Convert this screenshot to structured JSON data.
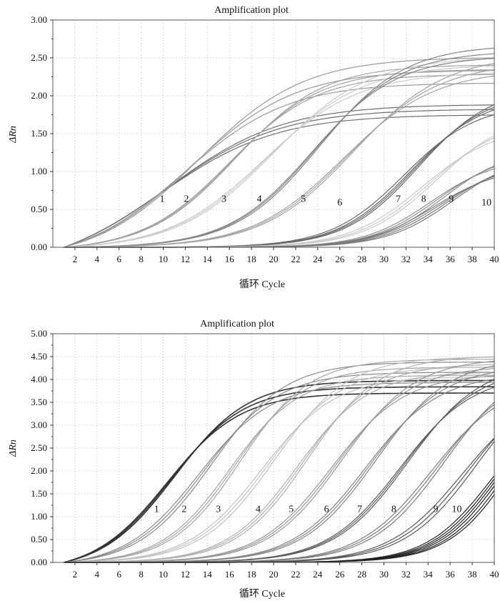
{
  "chart_data": [
    {
      "type": "line",
      "title": "Amplification plot",
      "xlabel": "循环  Cycle",
      "ylabel": "ΔRn",
      "xlim": [
        0,
        40
      ],
      "ylim": [
        0,
        3.0
      ],
      "x_ticks": [
        2,
        4,
        6,
        8,
        10,
        12,
        14,
        16,
        18,
        20,
        22,
        24,
        26,
        28,
        30,
        32,
        34,
        36,
        38,
        40
      ],
      "y_ticks": [
        "0.00",
        "0.50",
        "1.00",
        "1.50",
        "2.00",
        "2.50",
        "3.00"
      ],
      "grid": true,
      "series": [
        {
          "name": "1",
          "ct": 7.9,
          "plateau": 2.15,
          "slope": 0.19,
          "label_x": 9.9,
          "label_y": 0.6,
          "color": "#707070",
          "replicates": [
            -0.06,
            0.0,
            0.05
          ]
        },
        {
          "name": "2",
          "ct": 10.3,
          "plateau": 2.55,
          "slope": 0.21,
          "label_x": 12.1,
          "label_y": 0.6,
          "color": "#9a9a9a",
          "replicates": [
            -0.12,
            0.0,
            0.12
          ]
        },
        {
          "name": "3",
          "ct": 14.1,
          "plateau": 2.4,
          "slope": 0.25,
          "label_x": 15.5,
          "label_y": 0.6,
          "color": "#a2a2a2",
          "replicates": [
            -0.05,
            0.0,
            0.05
          ]
        },
        {
          "name": "4",
          "ct": 17.3,
          "plateau": 2.45,
          "slope": 0.23,
          "label_x": 18.7,
          "label_y": 0.6,
          "color": "#cccccc",
          "replicates": [
            -0.08,
            0.0,
            0.08
          ]
        },
        {
          "name": "5",
          "ct": 21.6,
          "plateau": 2.6,
          "slope": 0.26,
          "label_x": 22.7,
          "label_y": 0.6,
          "color": "#858585",
          "replicates": [
            -0.05,
            0.0,
            0.06
          ]
        },
        {
          "name": "6",
          "ct": 24.6,
          "plateau": 2.45,
          "slope": 0.24,
          "label_x": 26.0,
          "label_y": 0.55,
          "color": "#a4a4a4",
          "replicates": [
            -0.08,
            0.0,
            0.08
          ]
        },
        {
          "name": "7",
          "ct": 30.2,
          "plateau": 2.0,
          "slope": 0.3,
          "label_x": 31.3,
          "label_y": 0.6,
          "color": "#6a6a6a",
          "replicates": [
            -0.1,
            0.0,
            0.06,
            0.12
          ]
        },
        {
          "name": "8",
          "ct": 32.0,
          "plateau": 1.7,
          "slope": 0.3,
          "label_x": 33.6,
          "label_y": 0.6,
          "color": "#c9c9c9",
          "replicates": [
            -0.12,
            0.0,
            0.1
          ]
        },
        {
          "name": "9",
          "ct": 32.6,
          "plateau": 1.25,
          "slope": 0.33,
          "label_x": 36.1,
          "label_y": 0.6,
          "color": "#8e8e8e",
          "replicates": [
            -0.1,
            0.0,
            0.1
          ]
        },
        {
          "name": "10",
          "ct": 33.2,
          "plateau": 1.15,
          "slope": 0.33,
          "label_x": 39.3,
          "label_y": 0.55,
          "color": "#7a7a7a",
          "replicates": [
            -0.15,
            -0.05,
            0.05,
            0.15
          ]
        }
      ]
    },
    {
      "type": "line",
      "title": "Amplification plot",
      "xlabel": "循环  Cycle",
      "ylabel": "ΔRn",
      "xlim": [
        0,
        40
      ],
      "ylim": [
        0,
        5.0
      ],
      "x_ticks": [
        2,
        4,
        6,
        8,
        10,
        12,
        14,
        16,
        18,
        20,
        22,
        24,
        26,
        28,
        30,
        32,
        34,
        36,
        38,
        40
      ],
      "y_ticks": [
        "0.00",
        "0.50",
        "1.00",
        "1.50",
        "2.00",
        "2.50",
        "3.00",
        "3.50",
        "4.00",
        "4.50",
        "5.00"
      ],
      "grid": true,
      "series": [
        {
          "name": "1",
          "ct": 8.5,
          "plateau": 4.05,
          "slope": 0.3,
          "label_x": 9.4,
          "label_y": 1.1,
          "color": "#333333",
          "replicates": [
            -0.06,
            0.0,
            0.06
          ]
        },
        {
          "name": "2",
          "ct": 11.6,
          "plateau": 4.25,
          "slope": 0.3,
          "label_x": 11.9,
          "label_y": 1.1,
          "color": "#8a8a8a",
          "replicates": [
            -0.1,
            0.0,
            0.1
          ]
        },
        {
          "name": "3",
          "ct": 14.3,
          "plateau": 4.3,
          "slope": 0.32,
          "label_x": 15.0,
          "label_y": 1.1,
          "color": "#a6a6a6",
          "replicates": [
            -0.08,
            0.0,
            0.08
          ]
        },
        {
          "name": "4",
          "ct": 17.3,
          "plateau": 4.3,
          "slope": 0.3,
          "label_x": 18.6,
          "label_y": 1.1,
          "color": "#c2c2c2",
          "replicates": [
            -0.1,
            0.0,
            0.1
          ]
        },
        {
          "name": "5",
          "ct": 20.4,
          "plateau": 4.35,
          "slope": 0.31,
          "label_x": 21.6,
          "label_y": 1.1,
          "color": "#b0b0b0",
          "replicates": [
            -0.08,
            0.0,
            0.08
          ]
        },
        {
          "name": "6",
          "ct": 23.5,
          "plateau": 4.3,
          "slope": 0.3,
          "label_x": 24.8,
          "label_y": 1.1,
          "color": "#989898",
          "replicates": [
            -0.08,
            0.0,
            0.08
          ]
        },
        {
          "name": "7",
          "ct": 26.6,
          "plateau": 4.3,
          "slope": 0.3,
          "label_x": 27.8,
          "label_y": 1.1,
          "color": "#868686",
          "replicates": [
            -0.08,
            0.0,
            0.08
          ]
        },
        {
          "name": "8",
          "ct": 29.6,
          "plateau": 4.25,
          "slope": 0.3,
          "label_x": 30.9,
          "label_y": 1.1,
          "color": "#5e5e5e",
          "replicates": [
            -0.06,
            0.0,
            0.06
          ]
        },
        {
          "name": "9",
          "ct": 32.7,
          "plateau": 4.2,
          "slope": 0.3,
          "label_x": 34.7,
          "label_y": 1.1,
          "color": "#7e7e7e",
          "replicates": [
            -0.1,
            0.0,
            0.1
          ]
        },
        {
          "name": "10",
          "ct": 35.6,
          "plateau": 4.1,
          "slope": 0.3,
          "label_x": 36.6,
          "label_y": 1.1,
          "color": "#5a5a5a",
          "replicates": [
            -0.12,
            0.0,
            0.12
          ]
        },
        {
          "name": "",
          "ct": 38.4,
          "plateau": 3.9,
          "slope": 0.34,
          "color": "#222222",
          "replicates": [
            -0.15,
            -0.07,
            0.0,
            0.07,
            0.15,
            0.22
          ]
        }
      ]
    }
  ]
}
